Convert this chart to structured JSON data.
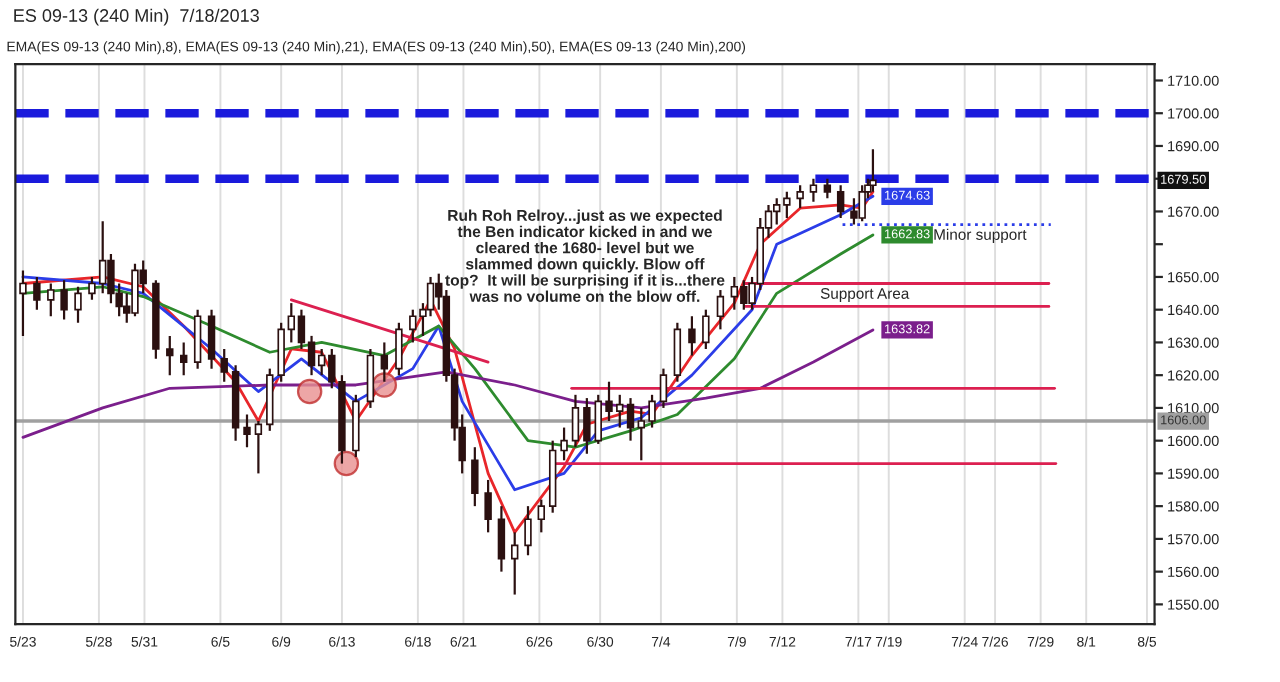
{
  "chart_data": {
    "type": "candlestick",
    "title": "ES 09-13 (240 Min)  7/18/2013",
    "subtitle": "EMA(ES 09-13 (240 Min),8), EMA(ES 09-13 (240 Min),21), EMA(ES 09-13 (240 Min),50), EMA(ES 09-13 (240 Min),200)",
    "color": "#2b1010",
    "x": [
      "2013-05-23T00:00",
      "2013-05-23T22:00",
      "2013-05-24T20:00",
      "2013-05-25T17:00",
      "2013-05-26T15:00",
      "2013-05-27T13:00",
      "2013-05-28T06:00",
      "2013-05-28T19:00",
      "2013-05-29T08:00",
      "2013-05-29T20:00",
      "2013-05-30T09:00",
      "2013-05-30T22:00",
      "2013-05-31T18:00",
      "2013-06-01T16:00",
      "2013-06-02T14:00",
      "2013-06-03T12:00",
      "2013-06-04T10:00",
      "2013-06-05T06:00",
      "2013-06-06T00:00",
      "2013-06-06T18:00",
      "2013-06-07T12:00",
      "2013-06-08T06:00",
      "2013-06-09T00:00",
      "2013-06-09T16:00",
      "2013-06-10T08:00",
      "2013-06-11T00:00",
      "2013-06-11T16:00",
      "2013-06-12T08:00",
      "2013-06-13T00:00",
      "2013-06-13T22:00",
      "2013-06-14T21:00",
      "2013-06-15T19:00",
      "2013-06-16T18:00",
      "2013-06-17T16:00",
      "2013-06-18T08:00",
      "2013-06-18T20:00",
      "2013-06-19T09:00",
      "2013-06-19T21:00",
      "2013-06-20T10:00",
      "2013-06-20T22:00",
      "2013-06-21T18:00",
      "2013-06-22T15:00",
      "2013-06-23T12:00",
      "2013-06-24T09:00",
      "2013-06-25T06:00",
      "2013-06-26T03:00",
      "2013-06-26T21:00",
      "2013-06-27T15:00",
      "2013-06-28T09:00",
      "2013-06-29T03:00",
      "2013-06-29T21:00",
      "2013-06-30T14:00",
      "2013-07-01T07:00",
      "2013-07-02T00:00",
      "2013-07-02T17:00",
      "2013-07-03T10:00",
      "2013-07-04T04:00",
      "2013-07-05T02:00",
      "2013-07-06T01:00",
      "2013-07-06T23:00",
      "2013-07-07T22:00",
      "2013-07-08T20:00",
      "2013-07-09T11:00",
      "2013-07-10T00:00",
      "2013-07-10T13:00",
      "2013-07-11T02:00",
      "2013-07-11T15:00",
      "2013-07-12T07:00",
      "2013-07-13T04:00",
      "2013-07-14T01:00",
      "2013-07-14T23:00",
      "2013-07-15T20:00",
      "2013-07-16T17:00",
      "2013-07-17T06:00",
      "2013-07-17T15:00",
      "2013-07-17T23:00"
    ],
    "ohlc": [
      [
        1645,
        1652,
        1632,
        1648
      ],
      [
        1648,
        1650,
        1640,
        1643
      ],
      [
        1643,
        1648,
        1638,
        1646
      ],
      [
        1646,
        1649,
        1637,
        1640
      ],
      [
        1640,
        1647,
        1636,
        1645
      ],
      [
        1645,
        1650,
        1643,
        1648
      ],
      [
        1648,
        1667,
        1645,
        1655
      ],
      [
        1655,
        1657,
        1642,
        1645
      ],
      [
        1645,
        1648,
        1638,
        1641
      ],
      [
        1641,
        1645,
        1636,
        1639
      ],
      [
        1639,
        1654,
        1638,
        1652
      ],
      [
        1652,
        1655,
        1645,
        1648
      ],
      [
        1648,
        1649,
        1625,
        1628
      ],
      [
        1628,
        1632,
        1620,
        1626
      ],
      [
        1626,
        1630,
        1620,
        1624
      ],
      [
        1624,
        1640,
        1622,
        1638
      ],
      [
        1638,
        1640,
        1622,
        1625
      ],
      [
        1625,
        1628,
        1618,
        1621
      ],
      [
        1621,
        1623,
        1600,
        1604
      ],
      [
        1604,
        1608,
        1598,
        1602
      ],
      [
        1602,
        1606,
        1590,
        1605
      ],
      [
        1605,
        1622,
        1603,
        1620
      ],
      [
        1620,
        1636,
        1618,
        1634
      ],
      [
        1634,
        1642,
        1630,
        1638
      ],
      [
        1638,
        1640,
        1628,
        1630
      ],
      [
        1630,
        1632,
        1620,
        1623
      ],
      [
        1623,
        1628,
        1620,
        1626
      ],
      [
        1626,
        1628,
        1616,
        1618
      ],
      [
        1618,
        1620,
        1593,
        1597
      ],
      [
        1597,
        1614,
        1595,
        1612
      ],
      [
        1612,
        1628,
        1610,
        1626
      ],
      [
        1626,
        1630,
        1618,
        1622
      ],
      [
        1622,
        1636,
        1620,
        1634
      ],
      [
        1634,
        1640,
        1630,
        1638
      ],
      [
        1638,
        1642,
        1632,
        1640
      ],
      [
        1640,
        1650,
        1638,
        1648
      ],
      [
        1648,
        1651,
        1640,
        1644
      ],
      [
        1644,
        1646,
        1618,
        1620
      ],
      [
        1620,
        1622,
        1600,
        1604
      ],
      [
        1604,
        1608,
        1590,
        1594
      ],
      [
        1594,
        1598,
        1580,
        1584
      ],
      [
        1584,
        1588,
        1572,
        1576
      ],
      [
        1576,
        1580,
        1560,
        1564
      ],
      [
        1564,
        1572,
        1553,
        1568
      ],
      [
        1568,
        1580,
        1565,
        1576
      ],
      [
        1576,
        1582,
        1572,
        1580
      ],
      [
        1580,
        1600,
        1578,
        1597
      ],
      [
        1597,
        1604,
        1594,
        1600
      ],
      [
        1600,
        1614,
        1598,
        1610
      ],
      [
        1610,
        1613,
        1596,
        1600
      ],
      [
        1600,
        1614,
        1599,
        1612
      ],
      [
        1612,
        1618,
        1606,
        1609
      ],
      [
        1609,
        1614,
        1604,
        1611
      ],
      [
        1611,
        1613,
        1600,
        1604
      ],
      [
        1604,
        1610,
        1594,
        1606
      ],
      [
        1606,
        1614,
        1604,
        1612
      ],
      [
        1612,
        1622,
        1610,
        1620
      ],
      [
        1620,
        1636,
        1618,
        1634
      ],
      [
        1634,
        1638,
        1626,
        1630
      ],
      [
        1630,
        1640,
        1628,
        1638
      ],
      [
        1638,
        1646,
        1634,
        1644
      ],
      [
        1644,
        1650,
        1640,
        1647
      ],
      [
        1647,
        1649,
        1640,
        1642
      ],
      [
        1642,
        1650,
        1640,
        1648
      ],
      [
        1648,
        1668,
        1646,
        1665
      ],
      [
        1665,
        1672,
        1662,
        1670
      ],
      [
        1670,
        1674,
        1666,
        1672
      ],
      [
        1672,
        1676,
        1668,
        1674
      ],
      [
        1674,
        1678,
        1671,
        1676
      ],
      [
        1676,
        1680,
        1673,
        1678
      ],
      [
        1678,
        1680,
        1674,
        1676
      ],
      [
        1676,
        1678,
        1668,
        1670
      ],
      [
        1670,
        1674,
        1666,
        1668
      ],
      [
        1668,
        1678,
        1667,
        1676
      ],
      [
        1676,
        1680,
        1674,
        1678
      ],
      [
        1678,
        1689,
        1676,
        1679.5
      ]
    ],
    "value_labels": [
      null,
      null,
      null,
      null,
      null,
      null,
      null,
      null,
      null,
      null,
      null,
      null,
      null,
      null,
      null,
      null,
      null,
      null,
      null,
      null,
      null,
      null,
      null,
      null,
      null,
      null,
      null,
      null,
      null,
      null,
      null,
      null,
      null,
      null,
      null,
      null,
      null,
      null,
      null,
      null,
      null,
      null,
      null,
      null,
      null,
      null,
      null,
      null,
      null,
      null,
      null,
      null,
      null,
      null,
      null,
      null,
      null,
      null,
      null,
      null,
      null,
      null,
      null,
      null,
      null,
      null,
      null,
      null,
      null,
      null,
      null,
      null,
      null,
      null,
      null,
      "1679.50"
    ],
    "series": [
      {
        "type": "line",
        "color": "#e8262a",
        "x": [
          "2013-05-23T00:00",
          "2013-05-28T06:00",
          "2013-05-30T22:00",
          "2013-06-02T14:00",
          "2013-06-06T00:00",
          "2013-06-07T12:00",
          "2013-06-09T16:00",
          "2013-06-11T16:00",
          "2013-06-13T22:00",
          "2013-06-16T18:00",
          "2013-06-18T20:00",
          "2013-06-20T10:00",
          "2013-06-22T15:00",
          "2013-06-24T09:00",
          "2013-06-27T15:00",
          "2013-06-29T03:00",
          "2013-07-02T00:00",
          "2013-07-03T10:00",
          "2013-07-06T01:00",
          "2013-07-08T20:00",
          "2013-07-10T13:00",
          "2013-07-13T04:00",
          "2013-07-15T20:00",
          "2013-07-17T06:00",
          "2013-07-17T23:00"
        ],
        "values": [
          1648,
          1650,
          1647,
          1635,
          1618,
          1606,
          1628,
          1627,
          1606,
          1625,
          1643,
          1628,
          1590,
          1572,
          1592,
          1605,
          1609,
          1608,
          1626,
          1642,
          1660,
          1671,
          1672,
          1671,
          1676
        ]
      },
      {
        "type": "line",
        "color": "#2b3de8",
        "x": [
          "2013-05-23T00:00",
          "2013-05-28T06:00",
          "2013-05-30T22:00",
          "2013-06-04T10:00",
          "2013-06-07T12:00",
          "2013-06-10T08:00",
          "2013-06-13T22:00",
          "2013-06-17T16:00",
          "2013-06-19T09:00",
          "2013-06-20T22:00",
          "2013-06-24T09:00",
          "2013-06-27T15:00",
          "2013-06-29T21:00",
          "2013-07-02T17:00",
          "2013-07-06T01:00",
          "2013-07-10T00:00",
          "2013-07-11T15:00",
          "2013-07-15T20:00",
          "2013-07-17T23:00"
        ],
        "values": [
          1650,
          1648,
          1645,
          1628,
          1615,
          1625,
          1612,
          1622,
          1635,
          1612,
          1585,
          1590,
          1603,
          1607,
          1620,
          1640,
          1660,
          1669,
          1674.63
        ],
        "value_labels": [
          null,
          null,
          null,
          null,
          null,
          null,
          null,
          null,
          null,
          null,
          null,
          null,
          null,
          null,
          null,
          null,
          null,
          null,
          "1674.63"
        ]
      },
      {
        "type": "line",
        "color": "#2e8b2e",
        "x": [
          "2013-05-23T00:00",
          "2013-05-28T06:00",
          "2013-05-30T22:00",
          "2013-06-04T10:00",
          "2013-06-08T06:00",
          "2013-06-11T16:00",
          "2013-06-15T19:00",
          "2013-06-19T09:00",
          "2013-06-21T18:00",
          "2013-06-25T06:00",
          "2013-06-28T09:00",
          "2013-07-02T00:00",
          "2013-07-05T02:00",
          "2013-07-08T20:00",
          "2013-07-11T15:00",
          "2013-07-15T20:00",
          "2013-07-17T23:00"
        ],
        "values": [
          1645,
          1647,
          1644,
          1635,
          1627,
          1630,
          1626,
          1635,
          1622,
          1600,
          1598,
          1603,
          1608,
          1625,
          1645,
          1657,
          1662.83
        ],
        "value_labels": [
          null,
          null,
          null,
          null,
          null,
          null,
          null,
          null,
          null,
          null,
          null,
          null,
          null,
          null,
          null,
          null,
          "1662.83"
        ]
      },
      {
        "type": "line",
        "color": "#7b1f8c",
        "x": [
          "2013-05-23T00:00",
          "2013-05-28T06:00",
          "2013-06-01T16:00",
          "2013-06-08T06:00",
          "2013-06-13T22:00",
          "2013-06-19T21:00",
          "2013-06-24T09:00",
          "2013-06-28T09:00",
          "2013-07-02T17:00",
          "2013-07-06T23:00",
          "2013-07-10T13:00",
          "2013-07-14T01:00",
          "2013-07-17T23:00"
        ],
        "values": [
          1601,
          1610,
          1616,
          1617,
          1617,
          1621,
          1617,
          1612,
          1610,
          1613,
          1616,
          1624,
          1633.82
        ],
        "value_labels": [
          null,
          null,
          null,
          null,
          null,
          null,
          null,
          null,
          null,
          null,
          null,
          null,
          "1633.82"
        ]
      },
      {
        "type": "line",
        "color": "#dc2050",
        "x": [
          "2013-06-09T16:00",
          "2013-06-22T15:00"
        ],
        "values": [
          1643,
          1624
        ]
      },
      {
        "type": "line",
        "color": "#dc2050",
        "x": [
          "2013-06-28T03:00",
          "2013-07-29T22:00"
        ],
        "values": [
          1616,
          1616
        ]
      },
      {
        "type": "line",
        "color": "#dc2050",
        "x": [
          "2013-06-27T03:00",
          "2013-07-30T00:00"
        ],
        "values": [
          1593,
          1593
        ]
      },
      {
        "type": "line",
        "color": "#dc2050",
        "x": [
          "2013-07-09T13:00",
          "2013-07-29T13:00"
        ],
        "values": [
          1648,
          1648
        ]
      },
      {
        "type": "line",
        "color": "#dc2050",
        "x": [
          "2013-07-09T13:00",
          "2013-07-29T13:00"
        ],
        "values": [
          1641,
          1641
        ]
      },
      {
        "type": "line",
        "color": "#2b3de8",
        "line_style": "dotted",
        "x": [
          "2013-07-15T23:00",
          "2013-07-29T16:00"
        ],
        "values": [
          1666,
          1666
        ]
      },
      {
        "type": "scatter",
        "color": "#e89090",
        "marker": "circle",
        "x": [
          "2013-06-10T21:00",
          "2013-06-13T07:00",
          "2013-06-15T19:00"
        ],
        "values": [
          1615,
          1593,
          1617
        ]
      }
    ],
    "ref_lines": [
      {
        "axis": "y",
        "value": 1700,
        "color": "#1a1adc",
        "line_style": "dashed"
      },
      {
        "axis": "y",
        "value": 1680,
        "color": "#1a1adc",
        "line_style": "dashed"
      },
      {
        "axis": "y",
        "value": 1606,
        "color": "#a0a0a0",
        "line_style": "solid",
        "label": "1606.00"
      }
    ],
    "annotations": [
      "Ruh Roh Relroy...just as we expected\nthe Ben indicator kicked in and we\ncleared the 1680- level but we\nslammed down quickly. Blow off\ntop?  It will be surprising if it is...there\nwas no volume on the blow off.",
      {
        "text": "Minor support",
        "x": "2013-07-25T00:00",
        "y": 1666
      },
      {
        "text": "Support Area",
        "x": "2013-07-17T10:00",
        "y": 1648
      }
    ],
    "xlim": [
      "2013-05-22T12:00",
      "2013-08-05T12:00"
    ],
    "ylim": [
      1544,
      1715
    ],
    "xticks": [
      {
        "value": "2013-05-23",
        "label": "5/23"
      },
      {
        "value": "2013-05-28",
        "label": "5/28"
      },
      {
        "value": "2013-05-31",
        "label": "5/31"
      },
      {
        "value": "2013-06-05",
        "label": "6/5"
      },
      {
        "value": "2013-06-09",
        "label": "6/9"
      },
      {
        "value": "2013-06-13",
        "label": "6/13"
      },
      {
        "value": "2013-06-18",
        "label": "6/18"
      },
      {
        "value": "2013-06-21",
        "label": "6/21"
      },
      {
        "value": "2013-06-26",
        "label": "6/26"
      },
      {
        "value": "2013-06-30",
        "label": "6/30"
      },
      {
        "value": "2013-07-04",
        "label": "7/4"
      },
      {
        "value": "2013-07-09",
        "label": "7/9"
      },
      {
        "value": "2013-07-12",
        "label": "7/12"
      },
      {
        "value": "2013-07-17",
        "label": "7/17"
      },
      {
        "value": "2013-07-19",
        "label": "7/19"
      },
      {
        "value": "2013-07-24",
        "label": "7/24"
      },
      {
        "value": "2013-07-26",
        "label": "7/26"
      },
      {
        "value": "2013-07-29",
        "label": "7/29"
      },
      {
        "value": "2013-08-01",
        "label": "8/1"
      },
      {
        "value": "2013-08-05",
        "label": "8/5"
      }
    ],
    "yticks": [
      {
        "value": 1550,
        "label": "1550.00"
      },
      {
        "value": 1560,
        "label": "1560.00"
      },
      {
        "value": 1570,
        "label": "1570.00"
      },
      {
        "value": 1580,
        "label": "1580.00"
      },
      {
        "value": 1590,
        "label": "1590.00"
      },
      {
        "value": 1600,
        "label": "1600.00"
      },
      {
        "value": 1610,
        "label": "1610.00"
      },
      {
        "value": 1620,
        "label": "1620.00"
      },
      {
        "value": 1630,
        "label": "1630.00"
      },
      {
        "value": 1640,
        "label": "1640.00"
      },
      {
        "value": 1650,
        "label": "1650.00"
      },
      {
        "value": 1660,
        "label": null
      },
      {
        "value": 1670,
        "label": "1670.00"
      },
      {
        "value": 1680,
        "label": null
      },
      {
        "value": 1690,
        "label": "1690.00"
      },
      {
        "value": 1700,
        "label": "1700.00"
      },
      {
        "value": 1710,
        "label": "1710.00"
      }
    ],
    "grid": "x",
    "legend": false
  }
}
